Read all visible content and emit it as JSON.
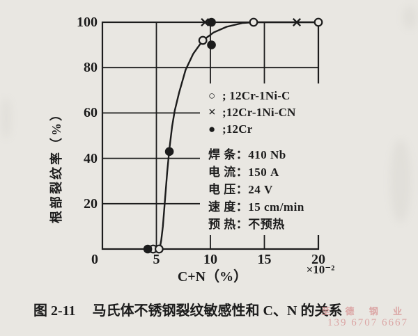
{
  "page": {
    "background": "#e9e7e2",
    "ink": "#1c1c1c"
  },
  "chart_data": {
    "type": "scatter",
    "title": "",
    "xlabel": "C+N（%）",
    "x_scale_note": "×10⁻²",
    "ylabel": "根部裂纹率（%）",
    "xlim": [
      0,
      20
    ],
    "ylim": [
      0,
      100
    ],
    "x_ticks": [
      0,
      5,
      10,
      15,
      20
    ],
    "y_ticks": [
      20,
      40,
      60,
      80,
      100
    ],
    "grid": true,
    "legend_position": "middle-right",
    "series": [
      {
        "name": "12Cr-1Ni-C",
        "marker": "open-circle",
        "points": [
          [
            4.7,
            0
          ],
          [
            5.25,
            0
          ],
          [
            9.3,
            92
          ],
          [
            14,
            100
          ],
          [
            20,
            100
          ]
        ]
      },
      {
        "name": "12Cr-1Ni-CN",
        "marker": "cross",
        "points": [
          [
            9.5,
            100
          ],
          [
            18,
            100
          ]
        ]
      },
      {
        "name": "12Cr",
        "marker": "filled-circle",
        "points": [
          [
            4.2,
            0
          ],
          [
            6.2,
            43
          ],
          [
            10.1,
            90
          ],
          [
            10.1,
            100
          ]
        ]
      }
    ],
    "curve_points": [
      [
        5.3,
        0
      ],
      [
        5.45,
        4
      ],
      [
        5.6,
        10
      ],
      [
        5.8,
        22
      ],
      [
        6.0,
        34
      ],
      [
        6.2,
        44
      ],
      [
        6.45,
        54
      ],
      [
        6.7,
        61
      ],
      [
        7.1,
        69
      ],
      [
        7.7,
        79
      ],
      [
        8.4,
        86
      ],
      [
        9.3,
        92
      ],
      [
        10.3,
        95.5
      ],
      [
        11.5,
        98
      ],
      [
        13,
        99.7
      ],
      [
        14,
        100
      ],
      [
        20,
        100
      ]
    ]
  },
  "legend": {
    "rows": [
      {
        "marker": "○",
        "icon": "open-circle-icon",
        "text": "; 12Cr-1Ni-C"
      },
      {
        "marker": "×",
        "icon": "cross-icon",
        "text": ";12Cr-1Ni-CN"
      },
      {
        "marker": "●",
        "icon": "filled-circle-icon",
        "text": ";12Cr"
      }
    ]
  },
  "parameters": {
    "rows": [
      "焊 条：410 Nb",
      "电 流：150 A",
      "电 压：24 V",
      "速 度：15 cm/min",
      "预 热：不预热"
    ]
  },
  "caption": {
    "number": "图 2-11",
    "text": "马氏体不锈钢裂纹敏感性和 C、N 的关系"
  },
  "watermark": {
    "line1": "至 德 钢 业",
    "line2": "139 6707 6667",
    "color": "#d89595"
  }
}
